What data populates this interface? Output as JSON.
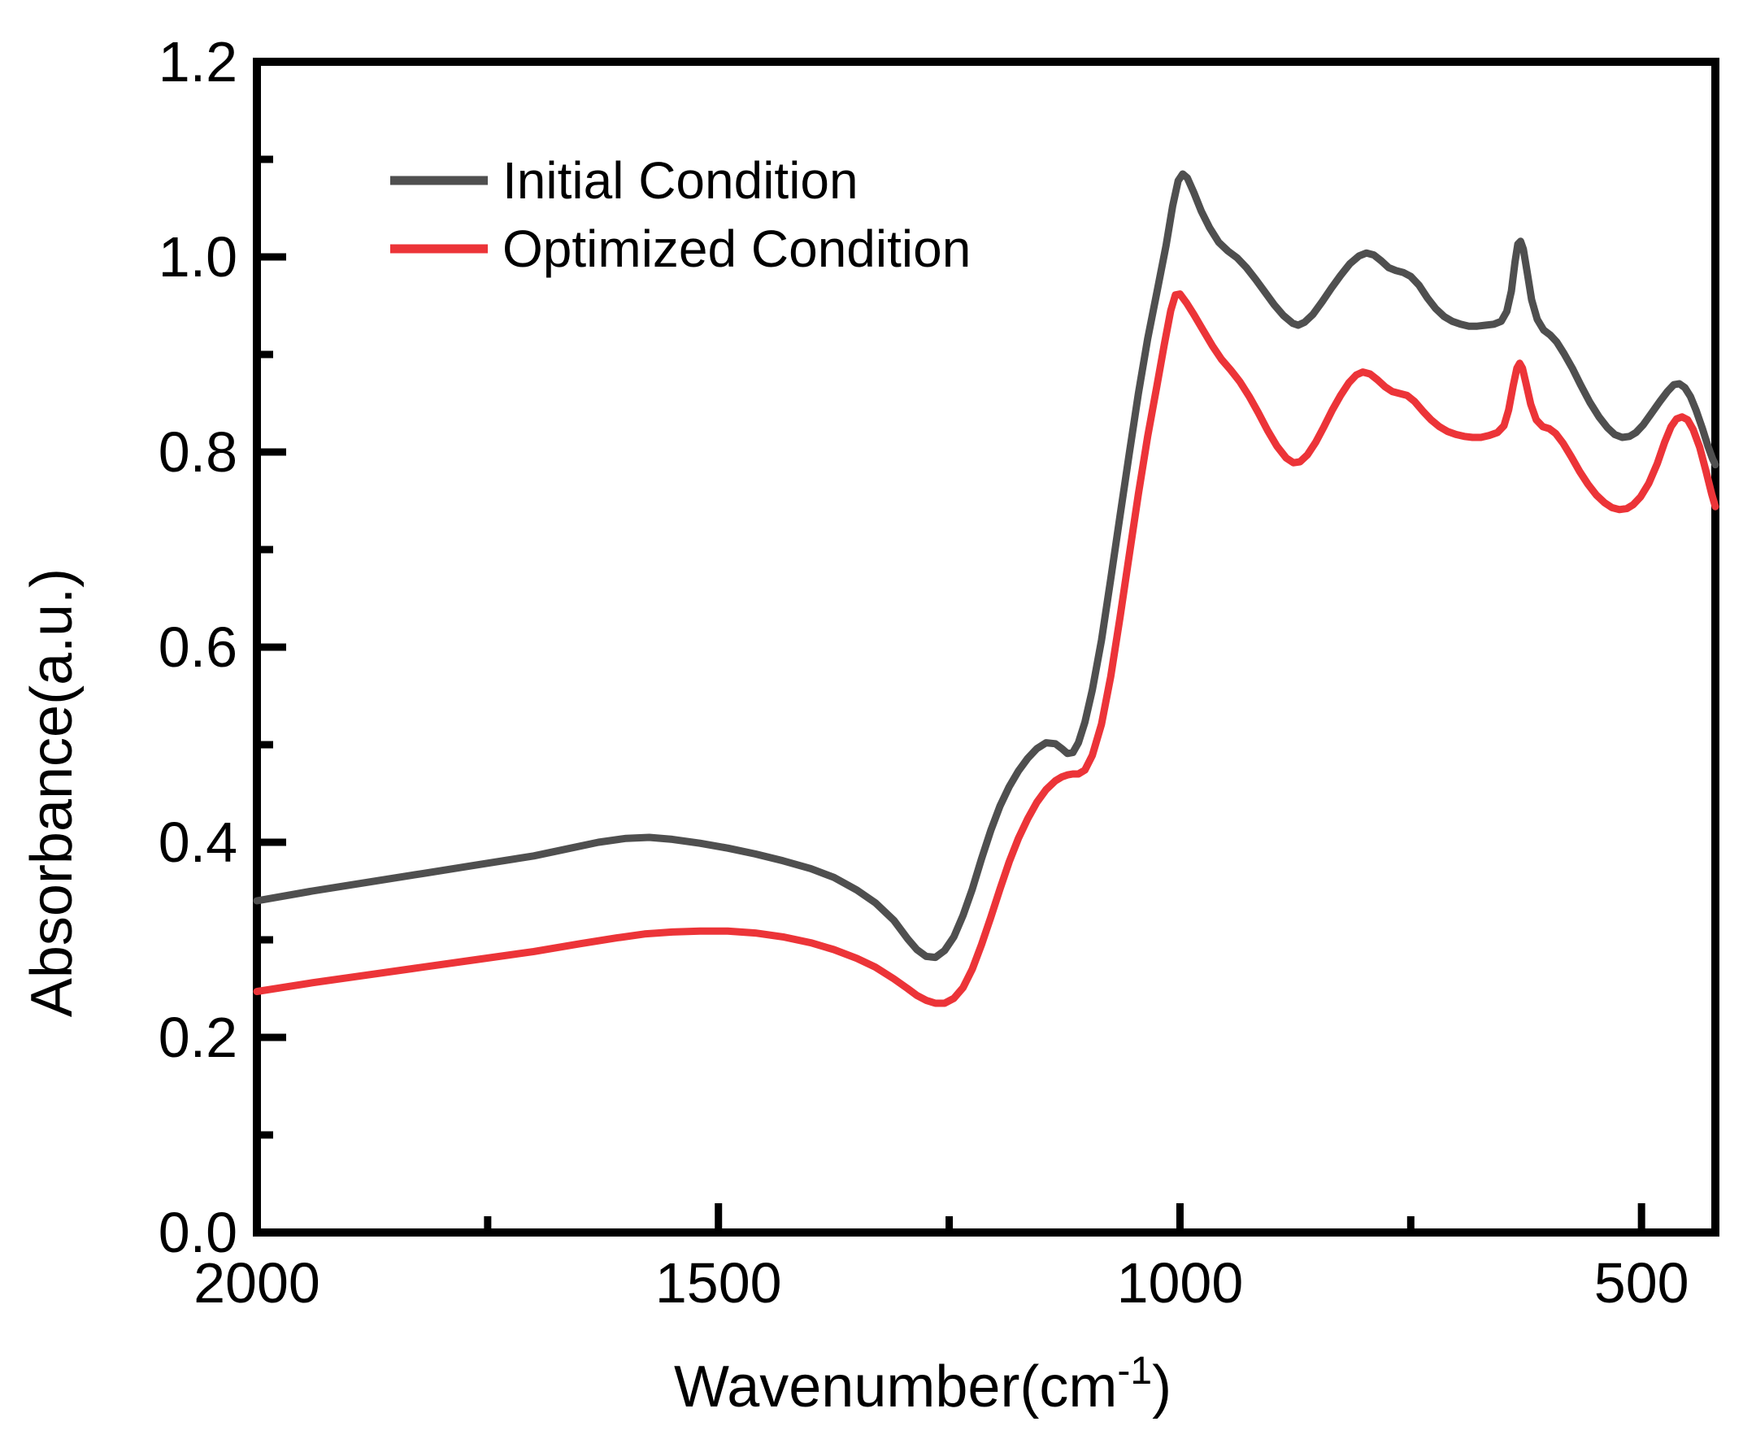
{
  "figure": {
    "background": "#ffffff"
  },
  "chart_data": {
    "type": "line",
    "title": "",
    "xlabel": "Wavenumber(cm⁻¹)",
    "xlabel_parts": {
      "prefix": "Wavenumber(cm",
      "sup": "-1",
      "suffix": ")"
    },
    "ylabel": "Absorbance(a.u.)",
    "grid": "off",
    "legend_position": "upper-left-inside",
    "x_axis": {
      "reversed": true,
      "left_value": 2000,
      "right_value": 420,
      "major_ticks": [
        2000,
        1500,
        1000,
        500
      ],
      "major_tick_labels": [
        "2000",
        "1500",
        "1000",
        "500"
      ],
      "minor_ticks": [
        1750,
        1250,
        750
      ]
    },
    "y_axis": {
      "min": 0.0,
      "max": 1.2,
      "major_ticks": [
        0.0,
        0.2,
        0.4,
        0.6,
        0.8,
        1.0,
        1.2
      ],
      "major_tick_labels": [
        "0.0",
        "0.2",
        "0.4",
        "0.6",
        "0.8",
        "1.0",
        "1.2"
      ],
      "minor_ticks": [
        0.1,
        0.3,
        0.5,
        0.7,
        0.9,
        1.1
      ]
    },
    "legend": {
      "entries": [
        {
          "label": "Initial Condition",
          "color": "#4f4f4f"
        },
        {
          "label": "Optimized Condition",
          "color": "#ec3438"
        }
      ]
    },
    "series": [
      {
        "name": "Initial Condition",
        "color": "#4f4f4f",
        "points": [
          [
            2000,
            0.34
          ],
          [
            1940,
            0.35
          ],
          [
            1880,
            0.359
          ],
          [
            1820,
            0.368
          ],
          [
            1760,
            0.377
          ],
          [
            1700,
            0.386
          ],
          [
            1660,
            0.394
          ],
          [
            1630,
            0.4
          ],
          [
            1600,
            0.404
          ],
          [
            1575,
            0.405
          ],
          [
            1550,
            0.403
          ],
          [
            1520,
            0.399
          ],
          [
            1490,
            0.394
          ],
          [
            1460,
            0.388
          ],
          [
            1430,
            0.381
          ],
          [
            1400,
            0.373
          ],
          [
            1375,
            0.364
          ],
          [
            1350,
            0.351
          ],
          [
            1330,
            0.338
          ],
          [
            1310,
            0.32
          ],
          [
            1295,
            0.301
          ],
          [
            1285,
            0.29
          ],
          [
            1275,
            0.283
          ],
          [
            1265,
            0.282
          ],
          [
            1255,
            0.289
          ],
          [
            1245,
            0.303
          ],
          [
            1235,
            0.325
          ],
          [
            1225,
            0.352
          ],
          [
            1215,
            0.383
          ],
          [
            1205,
            0.412
          ],
          [
            1195,
            0.437
          ],
          [
            1185,
            0.457
          ],
          [
            1175,
            0.473
          ],
          [
            1165,
            0.486
          ],
          [
            1155,
            0.496
          ],
          [
            1145,
            0.502
          ],
          [
            1135,
            0.501
          ],
          [
            1128,
            0.496
          ],
          [
            1122,
            0.491
          ],
          [
            1116,
            0.492
          ],
          [
            1110,
            0.502
          ],
          [
            1103,
            0.523
          ],
          [
            1095,
            0.556
          ],
          [
            1085,
            0.607
          ],
          [
            1075,
            0.67
          ],
          [
            1065,
            0.734
          ],
          [
            1055,
            0.798
          ],
          [
            1045,
            0.86
          ],
          [
            1035,
            0.916
          ],
          [
            1025,
            0.964
          ],
          [
            1015,
            1.012
          ],
          [
            1008,
            1.052
          ],
          [
            1002,
            1.078
          ],
          [
            997,
            1.085
          ],
          [
            992,
            1.081
          ],
          [
            985,
            1.066
          ],
          [
            977,
            1.047
          ],
          [
            968,
            1.03
          ],
          [
            958,
            1.015
          ],
          [
            948,
            1.006
          ],
          [
            938,
            0.999
          ],
          [
            928,
            0.989
          ],
          [
            918,
            0.977
          ],
          [
            908,
            0.964
          ],
          [
            898,
            0.951
          ],
          [
            888,
            0.94
          ],
          [
            878,
            0.932
          ],
          [
            872,
            0.93
          ],
          [
            865,
            0.933
          ],
          [
            856,
            0.941
          ],
          [
            846,
            0.954
          ],
          [
            836,
            0.968
          ],
          [
            826,
            0.981
          ],
          [
            816,
            0.993
          ],
          [
            806,
            1.001
          ],
          [
            798,
            1.004
          ],
          [
            790,
            1.002
          ],
          [
            782,
            0.996
          ],
          [
            774,
            0.989
          ],
          [
            766,
            0.986
          ],
          [
            758,
            0.984
          ],
          [
            750,
            0.98
          ],
          [
            741,
            0.971
          ],
          [
            732,
            0.958
          ],
          [
            723,
            0.947
          ],
          [
            714,
            0.939
          ],
          [
            705,
            0.934
          ],
          [
            696,
            0.931
          ],
          [
            687,
            0.929
          ],
          [
            678,
            0.929
          ],
          [
            669,
            0.93
          ],
          [
            660,
            0.931
          ],
          [
            652,
            0.934
          ],
          [
            646,
            0.944
          ],
          [
            641,
            0.965
          ],
          [
            637,
            0.995
          ],
          [
            634,
            1.013
          ],
          [
            631,
            1.016
          ],
          [
            628,
            1.008
          ],
          [
            624,
            0.985
          ],
          [
            619,
            0.956
          ],
          [
            613,
            0.936
          ],
          [
            606,
            0.925
          ],
          [
            599,
            0.92
          ],
          [
            592,
            0.913
          ],
          [
            584,
            0.901
          ],
          [
            575,
            0.886
          ],
          [
            566,
            0.869
          ],
          [
            556,
            0.851
          ],
          [
            546,
            0.836
          ],
          [
            537,
            0.825
          ],
          [
            529,
            0.818
          ],
          [
            521,
            0.815
          ],
          [
            513,
            0.816
          ],
          [
            506,
            0.82
          ],
          [
            498,
            0.828
          ],
          [
            489,
            0.84
          ],
          [
            480,
            0.852
          ],
          [
            472,
            0.862
          ],
          [
            465,
            0.869
          ],
          [
            459,
            0.87
          ],
          [
            453,
            0.866
          ],
          [
            447,
            0.857
          ],
          [
            441,
            0.843
          ],
          [
            434,
            0.824
          ],
          [
            428,
            0.806
          ],
          [
            423,
            0.793
          ],
          [
            420,
            0.787
          ]
        ]
      },
      {
        "name": "Optimized Condition",
        "color": "#ec3438",
        "points": [
          [
            2000,
            0.247
          ],
          [
            1940,
            0.256
          ],
          [
            1880,
            0.264
          ],
          [
            1820,
            0.272
          ],
          [
            1760,
            0.28
          ],
          [
            1700,
            0.288
          ],
          [
            1650,
            0.296
          ],
          [
            1610,
            0.302
          ],
          [
            1580,
            0.306
          ],
          [
            1550,
            0.308
          ],
          [
            1520,
            0.309
          ],
          [
            1490,
            0.309
          ],
          [
            1460,
            0.307
          ],
          [
            1430,
            0.303
          ],
          [
            1400,
            0.297
          ],
          [
            1375,
            0.29
          ],
          [
            1350,
            0.281
          ],
          [
            1330,
            0.272
          ],
          [
            1310,
            0.26
          ],
          [
            1295,
            0.25
          ],
          [
            1285,
            0.243
          ],
          [
            1275,
            0.238
          ],
          [
            1265,
            0.235
          ],
          [
            1255,
            0.235
          ],
          [
            1245,
            0.24
          ],
          [
            1235,
            0.251
          ],
          [
            1225,
            0.27
          ],
          [
            1215,
            0.295
          ],
          [
            1205,
            0.323
          ],
          [
            1195,
            0.352
          ],
          [
            1185,
            0.38
          ],
          [
            1175,
            0.404
          ],
          [
            1165,
            0.424
          ],
          [
            1155,
            0.441
          ],
          [
            1145,
            0.454
          ],
          [
            1135,
            0.463
          ],
          [
            1128,
            0.467
          ],
          [
            1122,
            0.469
          ],
          [
            1116,
            0.47
          ],
          [
            1110,
            0.47
          ],
          [
            1103,
            0.474
          ],
          [
            1095,
            0.489
          ],
          [
            1085,
            0.521
          ],
          [
            1075,
            0.57
          ],
          [
            1065,
            0.63
          ],
          [
            1055,
            0.694
          ],
          [
            1045,
            0.757
          ],
          [
            1035,
            0.816
          ],
          [
            1025,
            0.868
          ],
          [
            1017,
            0.91
          ],
          [
            1010,
            0.945
          ],
          [
            1005,
            0.961
          ],
          [
            1000,
            0.962
          ],
          [
            993,
            0.953
          ],
          [
            985,
            0.941
          ],
          [
            975,
            0.925
          ],
          [
            965,
            0.909
          ],
          [
            955,
            0.895
          ],
          [
            945,
            0.884
          ],
          [
            935,
            0.872
          ],
          [
            925,
            0.857
          ],
          [
            915,
            0.84
          ],
          [
            905,
            0.822
          ],
          [
            895,
            0.806
          ],
          [
            885,
            0.794
          ],
          [
            877,
            0.789
          ],
          [
            870,
            0.79
          ],
          [
            862,
            0.797
          ],
          [
            853,
            0.81
          ],
          [
            844,
            0.826
          ],
          [
            835,
            0.843
          ],
          [
            826,
            0.858
          ],
          [
            817,
            0.871
          ],
          [
            809,
            0.879
          ],
          [
            802,
            0.882
          ],
          [
            794,
            0.88
          ],
          [
            786,
            0.874
          ],
          [
            778,
            0.867
          ],
          [
            770,
            0.862
          ],
          [
            762,
            0.86
          ],
          [
            754,
            0.858
          ],
          [
            746,
            0.852
          ],
          [
            737,
            0.842
          ],
          [
            728,
            0.833
          ],
          [
            719,
            0.826
          ],
          [
            710,
            0.821
          ],
          [
            701,
            0.818
          ],
          [
            692,
            0.816
          ],
          [
            683,
            0.815
          ],
          [
            674,
            0.815
          ],
          [
            665,
            0.817
          ],
          [
            656,
            0.82
          ],
          [
            649,
            0.827
          ],
          [
            644,
            0.843
          ],
          [
            639,
            0.868
          ],
          [
            635,
            0.886
          ],
          [
            632,
            0.891
          ],
          [
            629,
            0.886
          ],
          [
            625,
            0.87
          ],
          [
            620,
            0.849
          ],
          [
            614,
            0.833
          ],
          [
            607,
            0.826
          ],
          [
            600,
            0.824
          ],
          [
            593,
            0.819
          ],
          [
            585,
            0.809
          ],
          [
            576,
            0.795
          ],
          [
            567,
            0.78
          ],
          [
            558,
            0.767
          ],
          [
            549,
            0.756
          ],
          [
            540,
            0.748
          ],
          [
            532,
            0.743
          ],
          [
            524,
            0.741
          ],
          [
            516,
            0.742
          ],
          [
            509,
            0.746
          ],
          [
            501,
            0.754
          ],
          [
            492,
            0.768
          ],
          [
            483,
            0.788
          ],
          [
            475,
            0.81
          ],
          [
            468,
            0.826
          ],
          [
            462,
            0.834
          ],
          [
            456,
            0.836
          ],
          [
            450,
            0.833
          ],
          [
            444,
            0.823
          ],
          [
            437,
            0.805
          ],
          [
            430,
            0.78
          ],
          [
            424,
            0.757
          ],
          [
            420,
            0.744
          ]
        ]
      }
    ]
  }
}
